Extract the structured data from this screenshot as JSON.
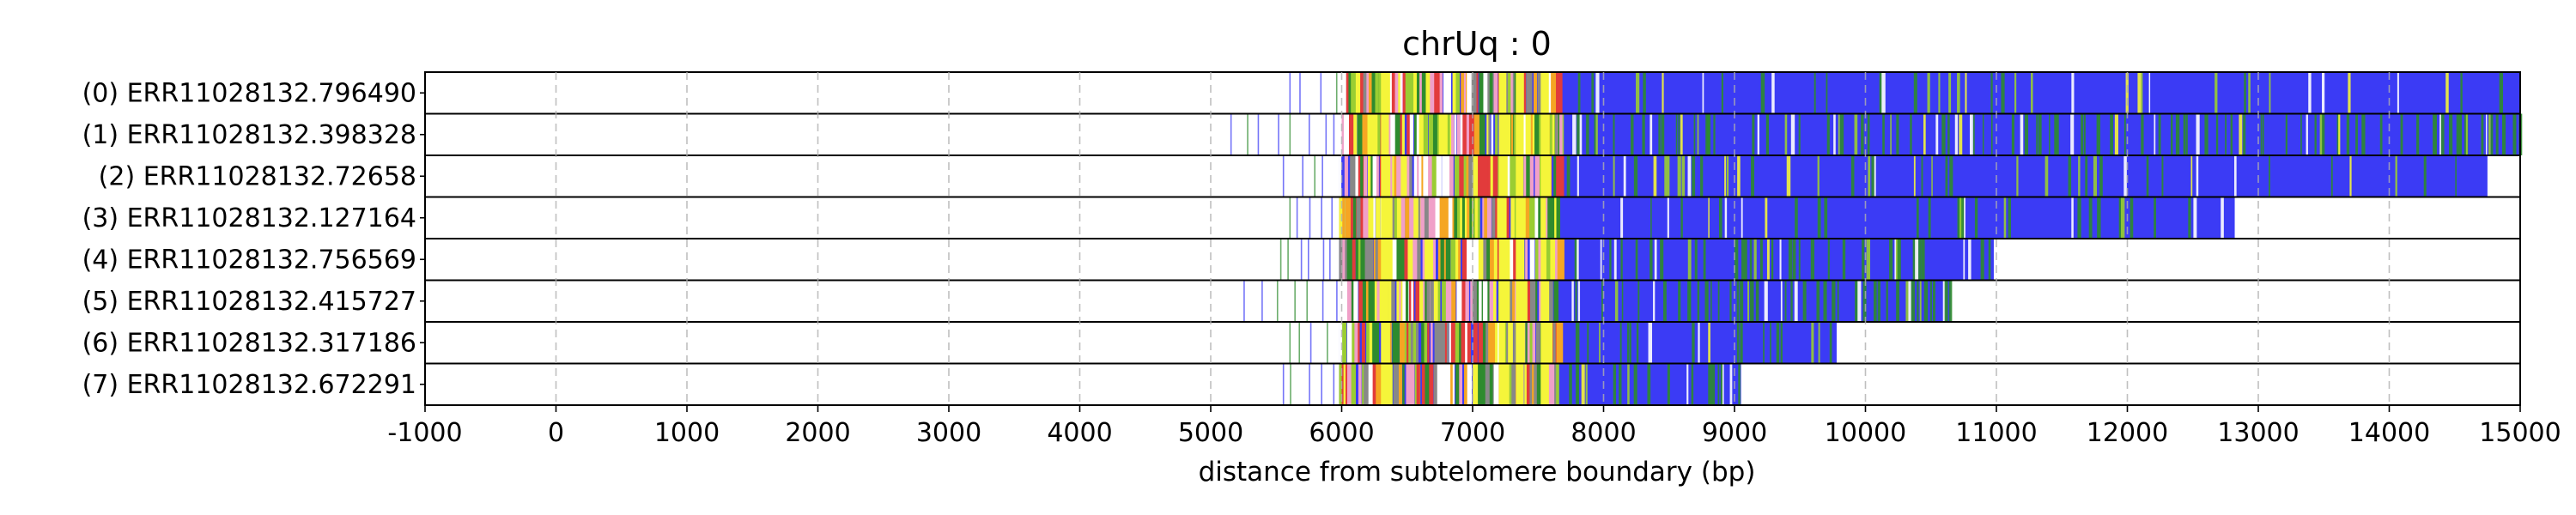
{
  "chart_data": {
    "type": "heatmap",
    "title": "chrUq : 0",
    "xlabel": "distance from subtelomere boundary (bp)",
    "ylabel": "",
    "xlim": [
      -1000,
      15000
    ],
    "xticks": [
      -1000,
      0,
      1000,
      2000,
      3000,
      4000,
      5000,
      6000,
      7000,
      8000,
      9000,
      10000,
      11000,
      12000,
      13000,
      14000,
      15000
    ],
    "grid": "vertical dashed at x ticks",
    "rows": [
      {
        "label": "(0) ERR11028132.796490",
        "start": 5600,
        "end": 15000,
        "dense_from": 6000,
        "green_fraction": 0.05
      },
      {
        "label": "(1) ERR11028132.398328",
        "start": 5150,
        "end": 15000,
        "dense_from": 6000,
        "green_fraction": 0.45
      },
      {
        "label": "(2) ERR11028132.72658",
        "start": 5550,
        "end": 14750,
        "dense_from": 5980,
        "green_fraction": 0.1
      },
      {
        "label": "(3) ERR11028132.127164",
        "start": 5600,
        "end": 12820,
        "dense_from": 5980,
        "green_fraction": 0.12
      },
      {
        "label": "(4) ERR11028132.756569",
        "start": 5530,
        "end": 10980,
        "dense_from": 5980,
        "green_fraction": 0.4
      },
      {
        "label": "(5) ERR11028132.415727",
        "start": 5250,
        "end": 10650,
        "dense_from": 5980,
        "green_fraction": 0.35
      },
      {
        "label": "(6) ERR11028132.317186",
        "start": 5600,
        "end": 9780,
        "dense_from": 5980,
        "green_fraction": 0.3
      },
      {
        "label": "(7) ERR11028132.672291",
        "start": 5550,
        "end": 9050,
        "dense_from": 5980,
        "green_fraction": 0.3
      }
    ],
    "motif_colors": {
      "main": "#3b3bf5",
      "variant_green": "#2e8b2e",
      "variant_yellow": "#f5f53a",
      "variant_orange": "#f5a623",
      "variant_red": "#e23b3b",
      "variant_pink": "#f0a0c8",
      "variant_lightgreen": "#9acd32",
      "variant_gray": "#888888"
    }
  }
}
